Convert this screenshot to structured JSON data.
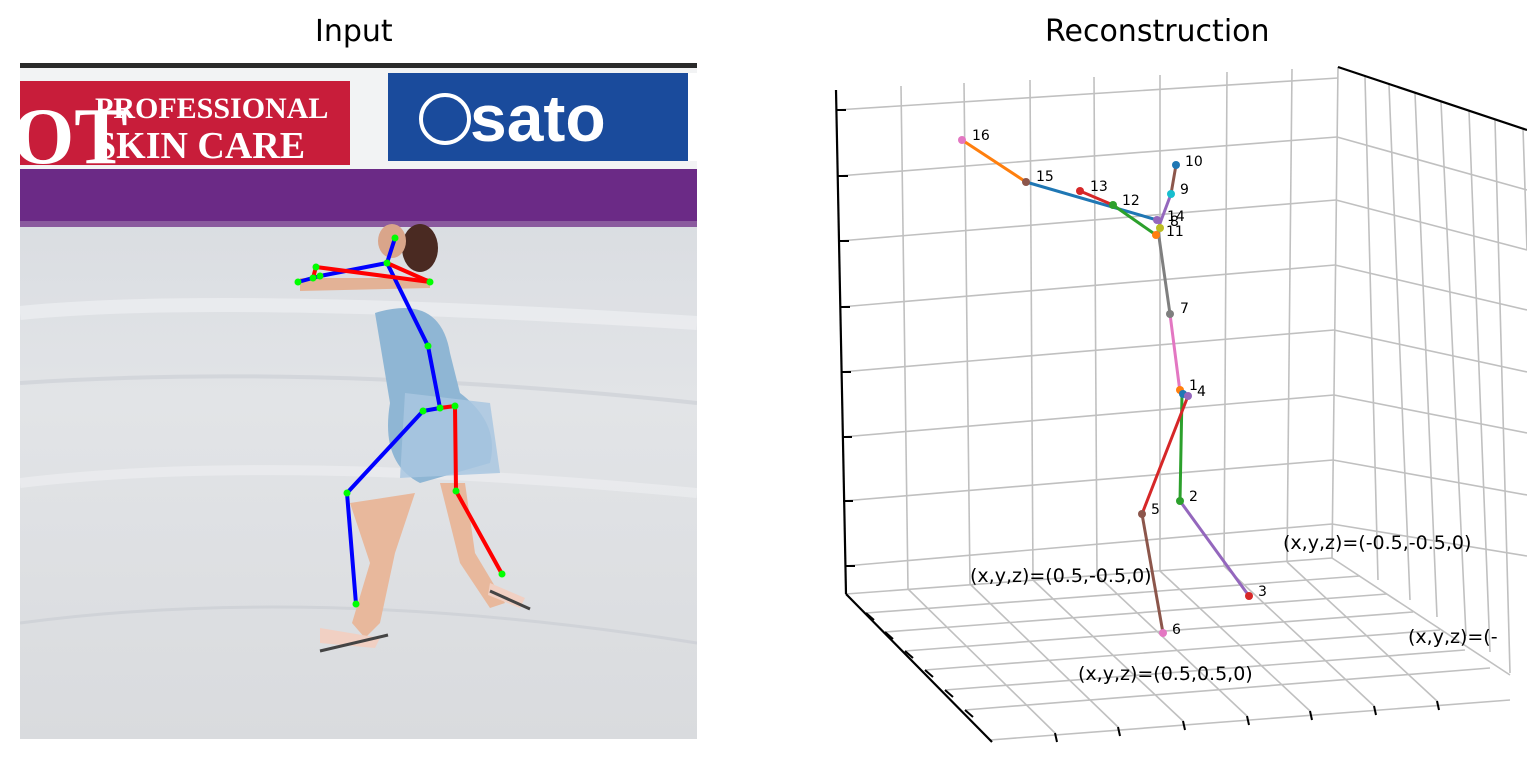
{
  "titles": {
    "input": "Input",
    "reconstruction": "Reconstruction"
  },
  "input_scene": {
    "banner_left_line1": "PROFESSIONAL",
    "banner_left_line2": "SKIN CARE",
    "banner_left_fragment": "OT",
    "banner_right_brand": "sato",
    "colors": {
      "banner_red": "#c81d3a",
      "banner_blue": "#1a4b9c",
      "purple_strip": "#6b2a86",
      "ice": "#dcdfe3",
      "skeleton_left": "#0000ff",
      "skeleton_right": "#ff0000",
      "joint": "#00ff00"
    }
  },
  "reconstruction": {
    "joint_labels": [
      "16",
      "15",
      "13",
      "12",
      "14",
      "9",
      "10",
      "8",
      "11",
      "7",
      "1",
      "4",
      "2",
      "5",
      "3",
      "6"
    ],
    "annotations": {
      "front_left": "(x,y,z)=(0.5,-0.5,0)",
      "back_right": "(x,y,z)=(-0.5,-0.5,0)",
      "front_center": "(x,y,z)=(0.5,0.5,0)",
      "right_cut": "(x,y,z)=(-"
    },
    "bone_colors": [
      "#1f77b4",
      "#ff7f0e",
      "#2ca02c",
      "#d62728",
      "#9467bd",
      "#8c564b",
      "#e377c2",
      "#7f7f7f",
      "#17becf"
    ]
  }
}
